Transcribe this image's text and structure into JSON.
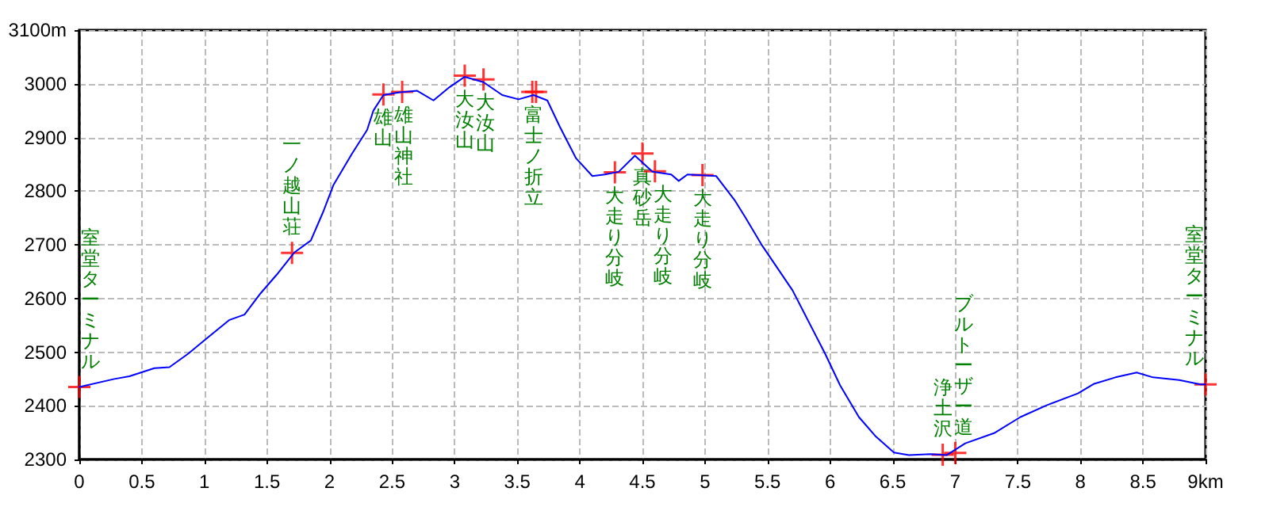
{
  "chart_data": {
    "type": "line",
    "xlim": [
      0,
      9
    ],
    "xticks": [
      0,
      0.5,
      1,
      1.5,
      2,
      2.5,
      3,
      3.5,
      4,
      4.5,
      5,
      5.5,
      6,
      6.5,
      7,
      7.5,
      8,
      8.5,
      {
        "value": 9,
        "label": "9km"
      }
    ],
    "ylim": [
      2300,
      3100
    ],
    "yticks": [
      2300,
      2400,
      2500,
      2600,
      2700,
      2800,
      2900,
      3000,
      {
        "value": 3100,
        "label": "3100m"
      }
    ],
    "grid": true,
    "series": [
      {
        "color": "#0000ff",
        "line_style": "solid",
        "marker": "none",
        "x": [
          0,
          0.28,
          0.4,
          0.6,
          0.72,
          0.87,
          1.0,
          1.2,
          1.32,
          1.45,
          1.58,
          1.72,
          1.85,
          1.95,
          2.03,
          2.18,
          2.3,
          2.35,
          2.43,
          2.56,
          2.7,
          2.83,
          2.96,
          3.08,
          3.23,
          3.38,
          3.51,
          3.63,
          3.74,
          3.84,
          3.97,
          4.1,
          4.2,
          4.31,
          4.44,
          4.58,
          4.73,
          4.79,
          4.86,
          5.09,
          5.24,
          5.32,
          5.45,
          5.7,
          5.96,
          6.08,
          6.23,
          6.36,
          6.51,
          6.63,
          6.8,
          6.93,
          7.08,
          7.31,
          7.52,
          7.73,
          7.98,
          8.11,
          8.28,
          8.45,
          8.58,
          8.79,
          8.96,
          9.0
        ],
        "values": [
          2435,
          2450,
          2455,
          2470,
          2472,
          2497,
          2522,
          2560,
          2570,
          2610,
          2645,
          2686,
          2708,
          2762,
          2811,
          2870,
          2914,
          2950,
          2979,
          2984,
          2987,
          2969,
          2994,
          3013,
          3003,
          2979,
          2971,
          2979,
          2969,
          2920,
          2861,
          2828,
          2831,
          2836,
          2866,
          2836,
          2831,
          2819,
          2831,
          2828,
          2782,
          2752,
          2701,
          2615,
          2497,
          2438,
          2379,
          2344,
          2313,
          2308,
          2310,
          2308,
          2330,
          2349,
          2379,
          2401,
          2423,
          2441,
          2453,
          2462,
          2453,
          2448,
          2440,
          2440
        ]
      },
      {
        "type": "scatter",
        "color": "#ff0000",
        "marker": "cross",
        "x": [
          0,
          1.7,
          2.43,
          2.58,
          3.08,
          3.23,
          3.62,
          3.65,
          4.28,
          4.5,
          4.6,
          4.98,
          6.9,
          7.0,
          9.0
        ],
        "values": [
          2435,
          2685,
          2980,
          2985,
          3015,
          3008,
          2985,
          2985,
          2835,
          2870,
          2837,
          2830,
          2309,
          2312,
          2440
        ]
      }
    ],
    "annotations": [
      {
        "text": "室堂ターミナル",
        "x": 0,
        "y": 2435
      },
      {
        "text": "一ノ越山荘",
        "x": 1.7,
        "y": 2685
      },
      {
        "text": "雄山",
        "x": 2.43,
        "y": 2980
      },
      {
        "text": "雄山神社",
        "x": 2.58,
        "y": 2985
      },
      {
        "text": "大汝山",
        "x": 3.08,
        "y": 3015
      },
      {
        "text": "大汝山",
        "x": 3.23,
        "y": 3008
      },
      {
        "text": "富士ノ折立",
        "x": 3.63,
        "y": 2985
      },
      {
        "text": "大走り分岐",
        "x": 4.28,
        "y": 2835
      },
      {
        "text": "真砂岳",
        "x": 4.5,
        "y": 2870
      },
      {
        "text": "大走り分岐",
        "x": 4.6,
        "y": 2837
      },
      {
        "text": "大走り分岐",
        "x": 4.98,
        "y": 2830
      },
      {
        "text": "浄土沢",
        "x": 6.9,
        "y": 2309
      },
      {
        "text": "ブルトーザー道",
        "x": 7.0,
        "y": 2312
      },
      {
        "text": "室堂ターミナル",
        "x": 9.0,
        "y": 2440
      }
    ]
  }
}
